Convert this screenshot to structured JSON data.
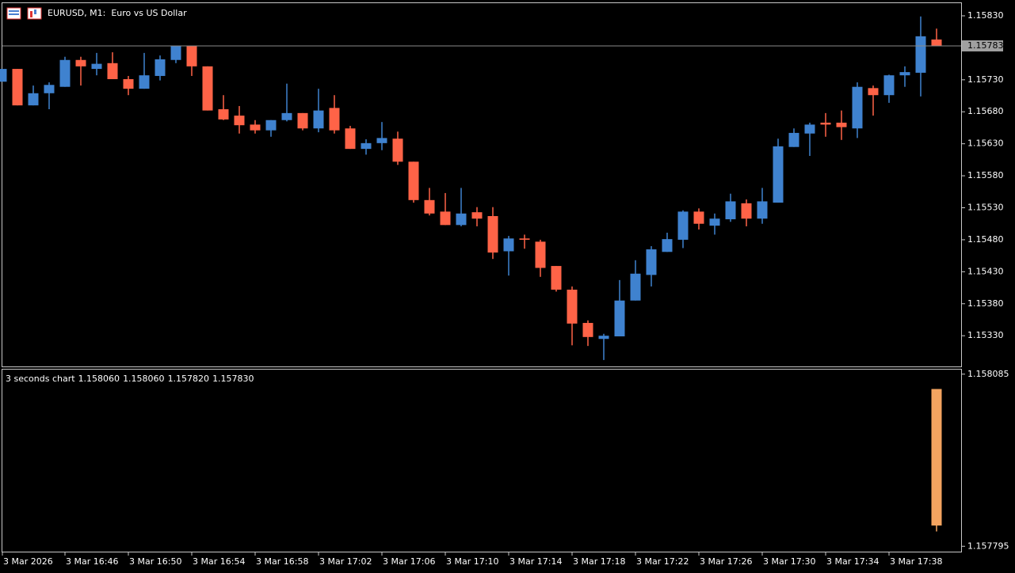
{
  "chart_data": [
    {
      "type": "candlestick",
      "title": "EURUSD, M1:  Euro vs US Dollar",
      "categories": [
        "3 Mar 2026",
        null,
        null,
        null,
        "3 Mar 16:46",
        null,
        null,
        null,
        "3 Mar 16:50",
        null,
        null,
        null,
        "3 Mar 16:54",
        null,
        null,
        null,
        "3 Mar 16:58",
        null,
        null,
        null,
        "3 Mar 17:02",
        null,
        null,
        null,
        "3 Mar 17:06",
        null,
        null,
        null,
        "3 Mar 17:10",
        null,
        null,
        null,
        "3 Mar 17:14",
        null,
        null,
        null,
        "3 Mar 17:18",
        null,
        null,
        null,
        "3 Mar 17:22",
        null,
        null,
        null,
        "3 Mar 17:26",
        null,
        null,
        null,
        "3 Mar 17:30",
        null,
        null,
        null,
        "3 Mar 17:34",
        null,
        null,
        null,
        "3 Mar 17:38",
        null,
        null,
        null
      ],
      "open": [
        1.15727,
        1.15747,
        1.1569,
        1.15709,
        1.15719,
        1.15761,
        1.15747,
        1.15756,
        1.15731,
        1.15716,
        1.15736,
        1.15761,
        1.15783,
        1.15751,
        1.15684,
        1.15674,
        1.1566,
        1.15651,
        1.15667,
        1.15678,
        1.15654,
        1.15686,
        1.15654,
        1.15622,
        1.15631,
        1.15638,
        1.15602,
        1.15542,
        1.15524,
        1.15503,
        1.15523,
        1.15517,
        1.15462,
        1.15482,
        1.15477,
        1.15439,
        1.15402,
        1.1535,
        1.15325,
        1.15329,
        1.15385,
        1.15425,
        1.15461,
        1.1548,
        1.15524,
        1.15502,
        1.15512,
        1.15537,
        1.15513,
        1.15538,
        1.15625,
        1.15646,
        1.15663,
        1.15663,
        1.15654,
        1.15717,
        1.15706,
        1.15737,
        1.15741,
        1.15793
      ],
      "high": [
        1.15747,
        1.15747,
        1.15721,
        1.15726,
        1.15766,
        1.15766,
        1.15772,
        1.15773,
        1.15736,
        1.15772,
        1.15768,
        1.15783,
        1.15783,
        1.15751,
        1.15706,
        1.15689,
        1.15667,
        1.15667,
        1.15724,
        1.15678,
        1.15716,
        1.15706,
        1.15658,
        1.15637,
        1.15664,
        1.15649,
        1.15602,
        1.15561,
        1.15553,
        1.15561,
        1.15531,
        1.15531,
        1.15486,
        1.15488,
        1.1548,
        1.15439,
        1.15407,
        1.15354,
        1.15333,
        1.15417,
        1.15448,
        1.1547,
        1.15491,
        1.15526,
        1.15529,
        1.15521,
        1.15552,
        1.15543,
        1.15561,
        1.15638,
        1.15654,
        1.15663,
        1.15678,
        1.15682,
        1.15726,
        1.15721,
        1.15738,
        1.15751,
        1.15829,
        1.1581
      ],
      "low": [
        1.15727,
        1.1569,
        1.1569,
        1.15684,
        1.15719,
        1.15721,
        1.15737,
        1.15731,
        1.15706,
        1.15716,
        1.15729,
        1.15756,
        1.15736,
        1.15682,
        1.15667,
        1.15646,
        1.15646,
        1.15641,
        1.15665,
        1.15651,
        1.15648,
        1.15646,
        1.15622,
        1.15613,
        1.1562,
        1.15597,
        1.15538,
        1.15518,
        1.15503,
        1.15501,
        1.15501,
        1.1545,
        1.15424,
        1.15466,
        1.15422,
        1.15399,
        1.15315,
        1.15314,
        1.15292,
        1.15329,
        1.15385,
        1.15407,
        1.15461,
        1.15467,
        1.15496,
        1.15488,
        1.15508,
        1.15501,
        1.15505,
        1.15538,
        1.15625,
        1.15611,
        1.15641,
        1.15636,
        1.15639,
        1.15674,
        1.15694,
        1.15719,
        1.15704,
        1.15783
      ],
      "close": [
        1.15747,
        1.1569,
        1.15709,
        1.15722,
        1.15761,
        1.15751,
        1.15755,
        1.15731,
        1.15716,
        1.15737,
        1.15762,
        1.15783,
        1.15751,
        1.15682,
        1.15668,
        1.15659,
        1.15651,
        1.15667,
        1.15678,
        1.15654,
        1.15682,
        1.15651,
        1.15622,
        1.15631,
        1.15639,
        1.15602,
        1.15542,
        1.15521,
        1.15503,
        1.15521,
        1.15513,
        1.1546,
        1.15482,
        1.1548,
        1.15436,
        1.15402,
        1.15349,
        1.15328,
        1.1533,
        1.15385,
        1.15427,
        1.15465,
        1.15481,
        1.15524,
        1.15505,
        1.15513,
        1.1554,
        1.15513,
        1.1554,
        1.15626,
        1.15647,
        1.1566,
        1.1566,
        1.15656,
        1.15719,
        1.15706,
        1.15737,
        1.15742,
        1.15798,
        1.15783
      ],
      "up_color": "#3f82cf",
      "down_color": "#ff6347",
      "current_price": {
        "value": 1.15783,
        "label": "1.15783"
      },
      "ylim": [
        1.15282,
        1.15851
      ],
      "yticks": [
        {
          "value": 1.1583,
          "label": "1.15830"
        },
        {
          "value": 1.1573,
          "label": "1.15730"
        },
        {
          "value": 1.1568,
          "label": "1.15680"
        },
        {
          "value": 1.1563,
          "label": "1.15630"
        },
        {
          "value": 1.1558,
          "label": "1.15580"
        },
        {
          "value": 1.1553,
          "label": "1.15530"
        },
        {
          "value": 1.1548,
          "label": "1.15480"
        },
        {
          "value": 1.1543,
          "label": "1.15430"
        },
        {
          "value": 1.1538,
          "label": "1.15380"
        },
        {
          "value": 1.1533,
          "label": "1.15330"
        }
      ],
      "grid": false
    },
    {
      "type": "candlestick",
      "title": "3 seconds chart",
      "open": [
        1.15806
      ],
      "high": [
        1.15806
      ],
      "low": [
        1.15782
      ],
      "close": [
        1.15783
      ],
      "value_labels": [
        "1.158060",
        "1.158060",
        "1.157820",
        "1.157830"
      ],
      "color": "#f4a460",
      "ylim": [
        1.157786,
        1.158094
      ],
      "yticks": [
        {
          "value": 1.158085,
          "label": "1.158085"
        },
        {
          "value": 1.157795,
          "label": "1.157795"
        }
      ],
      "grid": false
    }
  ]
}
